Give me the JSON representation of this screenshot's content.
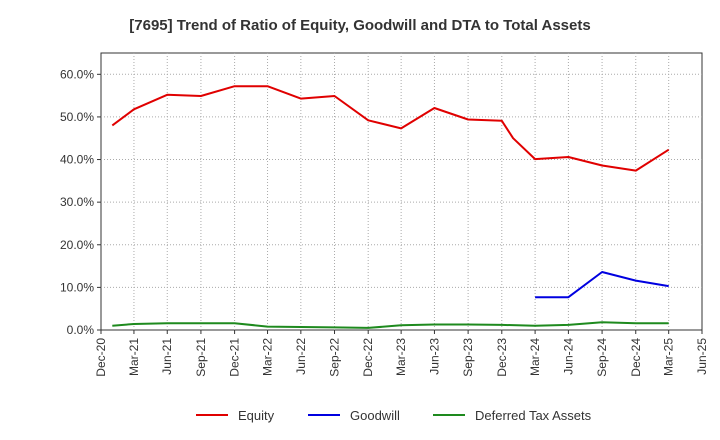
{
  "chart_data": {
    "type": "line",
    "title": "[7695]  Trend of Ratio of Equity, Goodwill and DTA to Total Assets",
    "xlabel": "",
    "ylabel": "",
    "x_ticks": [
      "Dec-20",
      "Mar-21",
      "Jun-21",
      "Sep-21",
      "Dec-21",
      "Mar-22",
      "Jun-22",
      "Sep-22",
      "Dec-22",
      "Mar-23",
      "Jun-23",
      "Sep-23",
      "Dec-23",
      "Mar-24",
      "Jun-24",
      "Sep-24",
      "Dec-24",
      "Mar-25",
      "Jun-25"
    ],
    "y_ticks": [
      "0.0%",
      "10.0%",
      "20.0%",
      "30.0%",
      "40.0%",
      "50.0%",
      "60.0%"
    ],
    "ylim": [
      0,
      65
    ],
    "grid": true,
    "legend_position": "bottom",
    "series": [
      {
        "name": "Equity",
        "color": "#e00000",
        "points": [
          [
            "2021-01-31",
            48.0
          ],
          [
            "2021-03-31",
            51.8
          ],
          [
            "2021-06-30",
            55.2
          ],
          [
            "2021-09-30",
            54.9
          ],
          [
            "2021-12-31",
            57.2
          ],
          [
            "2022-03-31",
            57.2
          ],
          [
            "2022-06-30",
            54.3
          ],
          [
            "2022-09-30",
            54.9
          ],
          [
            "2022-12-31",
            49.2
          ],
          [
            "2023-03-31",
            47.3
          ],
          [
            "2023-06-30",
            52.1
          ],
          [
            "2023-09-30",
            49.4
          ],
          [
            "2023-12-31",
            49.1
          ],
          [
            "2024-01-31",
            45.0
          ],
          [
            "2024-03-31",
            40.1
          ],
          [
            "2024-06-30",
            40.6
          ],
          [
            "2024-09-30",
            38.6
          ],
          [
            "2024-12-31",
            37.4
          ],
          [
            "2025-03-31",
            42.3
          ]
        ]
      },
      {
        "name": "Goodwill",
        "color": "#0000e0",
        "points": [
          [
            "2024-03-31",
            7.7
          ],
          [
            "2024-06-30",
            7.7
          ],
          [
            "2024-09-30",
            13.6
          ],
          [
            "2024-12-31",
            11.6
          ],
          [
            "2025-03-31",
            10.3
          ]
        ]
      },
      {
        "name": "Deferred Tax Assets",
        "color": "#1e8a1e",
        "points": [
          [
            "2021-01-31",
            1.0
          ],
          [
            "2021-03-31",
            1.4
          ],
          [
            "2021-06-30",
            1.6
          ],
          [
            "2021-09-30",
            1.6
          ],
          [
            "2021-12-31",
            1.6
          ],
          [
            "2022-03-31",
            0.8
          ],
          [
            "2022-06-30",
            0.7
          ],
          [
            "2022-09-30",
            0.6
          ],
          [
            "2022-12-31",
            0.5
          ],
          [
            "2023-03-31",
            1.1
          ],
          [
            "2023-06-30",
            1.3
          ],
          [
            "2023-09-30",
            1.3
          ],
          [
            "2023-12-31",
            1.2
          ],
          [
            "2024-03-31",
            1.0
          ],
          [
            "2024-06-30",
            1.2
          ],
          [
            "2024-09-30",
            1.8
          ],
          [
            "2024-12-31",
            1.6
          ],
          [
            "2025-03-31",
            1.6
          ]
        ]
      }
    ]
  }
}
